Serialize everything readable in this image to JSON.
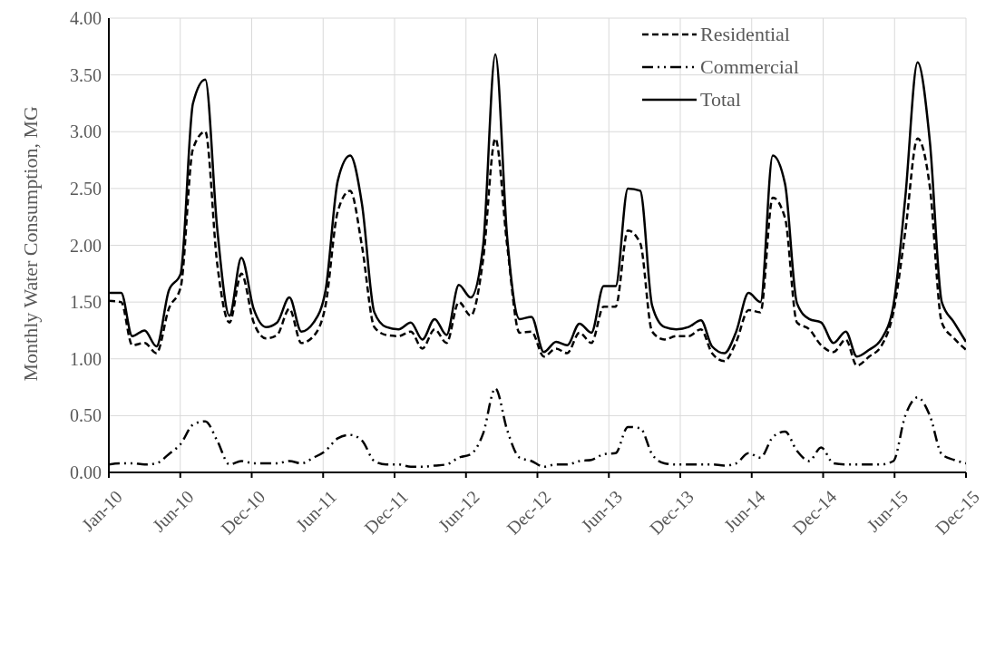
{
  "chart_data": {
    "type": "line",
    "ylabel": "Monthly Water Consumption, MG",
    "x": [
      "2010-01-01",
      "2010-02-01",
      "2010-03-01",
      "2010-04-01",
      "2010-05-01",
      "2010-06-01",
      "2010-07-01",
      "2010-08-01",
      "2010-09-01",
      "2010-10-01",
      "2010-11-01",
      "2010-12-01",
      "2011-01-01",
      "2011-02-01",
      "2011-03-01",
      "2011-04-01",
      "2011-05-01",
      "2011-06-01",
      "2011-07-01",
      "2011-08-01",
      "2011-09-01",
      "2011-10-01",
      "2011-11-01",
      "2011-12-01",
      "2012-01-01",
      "2012-02-01",
      "2012-03-01",
      "2012-04-01",
      "2012-05-01",
      "2012-06-01",
      "2012-07-01",
      "2012-08-01",
      "2012-09-01",
      "2012-10-01",
      "2012-11-01",
      "2012-12-01",
      "2013-01-01",
      "2013-02-01",
      "2013-03-01",
      "2013-04-01",
      "2013-05-01",
      "2013-06-01",
      "2013-07-01",
      "2013-08-01",
      "2013-09-01",
      "2013-10-01",
      "2013-11-01",
      "2013-12-01",
      "2014-01-01",
      "2014-02-01",
      "2014-03-01",
      "2014-04-01",
      "2014-05-01",
      "2014-06-01",
      "2014-07-01",
      "2014-08-01",
      "2014-09-01",
      "2014-10-01",
      "2014-11-01",
      "2014-12-01",
      "2015-01-01",
      "2015-02-01",
      "2015-03-01",
      "2015-04-01",
      "2015-05-01",
      "2015-06-01",
      "2015-07-01",
      "2015-08-01",
      "2015-09-01",
      "2015-10-01",
      "2015-11-01",
      "2015-12-01"
    ],
    "series": [
      {
        "name": "Residential",
        "color": "#000000",
        "line_style": "dashed",
        "values": [
          1.51,
          1.5,
          1.12,
          1.14,
          1.05,
          1.44,
          1.63,
          2.85,
          3.0,
          1.84,
          1.32,
          1.75,
          1.32,
          1.18,
          1.21,
          1.44,
          1.14,
          1.2,
          1.47,
          2.3,
          2.48,
          1.99,
          1.28,
          1.21,
          1.2,
          1.24,
          1.09,
          1.26,
          1.14,
          1.5,
          1.38,
          1.87,
          2.94,
          1.99,
          1.23,
          1.24,
          1.02,
          1.09,
          1.05,
          1.23,
          1.14,
          1.46,
          1.46,
          2.13,
          2.02,
          1.24,
          1.17,
          1.2,
          1.2,
          1.26,
          1.05,
          0.98,
          1.15,
          1.43,
          1.41,
          2.42,
          2.24,
          1.32,
          1.26,
          1.12,
          1.06,
          1.17,
          0.94,
          1.02,
          1.11,
          1.41,
          2.12,
          2.94,
          2.51,
          1.32,
          1.18,
          1.08
        ]
      },
      {
        "name": "Commercial",
        "color": "#000000",
        "line_style": "dotted",
        "values": [
          0.07,
          0.08,
          0.08,
          0.07,
          0.08,
          0.16,
          0.25,
          0.42,
          0.45,
          0.28,
          0.07,
          0.1,
          0.08,
          0.08,
          0.08,
          0.1,
          0.08,
          0.13,
          0.19,
          0.3,
          0.33,
          0.28,
          0.1,
          0.07,
          0.07,
          0.05,
          0.05,
          0.06,
          0.07,
          0.13,
          0.16,
          0.34,
          0.74,
          0.37,
          0.13,
          0.1,
          0.05,
          0.07,
          0.07,
          0.1,
          0.11,
          0.16,
          0.17,
          0.4,
          0.39,
          0.16,
          0.08,
          0.07,
          0.07,
          0.07,
          0.07,
          0.06,
          0.08,
          0.17,
          0.13,
          0.31,
          0.36,
          0.19,
          0.1,
          0.22,
          0.08,
          0.07,
          0.07,
          0.07,
          0.07,
          0.1,
          0.5,
          0.66,
          0.5,
          0.16,
          0.11,
          0.08
        ]
      },
      {
        "name": "Total",
        "color": "#000000",
        "line_style": "solid",
        "values": [
          1.58,
          1.58,
          1.2,
          1.25,
          1.11,
          1.6,
          1.75,
          3.25,
          3.46,
          2.15,
          1.38,
          1.89,
          1.44,
          1.28,
          1.32,
          1.54,
          1.24,
          1.32,
          1.6,
          2.57,
          2.79,
          2.36,
          1.41,
          1.28,
          1.26,
          1.32,
          1.17,
          1.35,
          1.21,
          1.65,
          1.54,
          1.99,
          3.68,
          2.06,
          1.35,
          1.37,
          1.06,
          1.15,
          1.12,
          1.31,
          1.23,
          1.64,
          1.64,
          2.5,
          2.48,
          1.47,
          1.28,
          1.26,
          1.28,
          1.34,
          1.11,
          1.05,
          1.24,
          1.58,
          1.5,
          2.79,
          2.54,
          1.49,
          1.35,
          1.32,
          1.14,
          1.24,
          1.02,
          1.08,
          1.17,
          1.47,
          2.42,
          3.61,
          2.91,
          1.5,
          1.32,
          1.15
        ]
      }
    ],
    "xlim": [
      "2010-01-01",
      "2015-12-01"
    ],
    "xticks": [
      {
        "value": "2010-01-01",
        "label": "Jan-10"
      },
      {
        "value": "2010-06-30",
        "label": "Jun-10"
      },
      {
        "value": "2010-12-27",
        "label": "Dec-10"
      },
      {
        "value": "2011-06-25",
        "label": "Jun-11"
      },
      {
        "value": "2011-12-22",
        "label": "Dec-11"
      },
      {
        "value": "2012-06-19",
        "label": "Jun-12"
      },
      {
        "value": "2012-12-16",
        "label": "Dec-12"
      },
      {
        "value": "2013-06-14",
        "label": "Jun-13"
      },
      {
        "value": "2013-12-11",
        "label": "Dec-13"
      },
      {
        "value": "2014-06-09",
        "label": "Jun-14"
      },
      {
        "value": "2014-12-06",
        "label": "Dec-14"
      },
      {
        "value": "2015-06-04",
        "label": "Jun-15"
      },
      {
        "value": "2015-12-01",
        "label": "Dec-15"
      }
    ],
    "ylim": [
      0,
      4
    ],
    "yticks": [
      {
        "value": 0,
        "label": "0.00"
      },
      {
        "value": 0.5,
        "label": "0.50"
      },
      {
        "value": 1,
        "label": "1.00"
      },
      {
        "value": 1.5,
        "label": "1.50"
      },
      {
        "value": 2,
        "label": "2.00"
      },
      {
        "value": 2.5,
        "label": "2.50"
      },
      {
        "value": 3,
        "label": "3.00"
      },
      {
        "value": 3.5,
        "label": "3.50"
      },
      {
        "value": 4,
        "label": "4.00"
      }
    ],
    "grid": true,
    "legend": "top right",
    "marker": "none"
  }
}
